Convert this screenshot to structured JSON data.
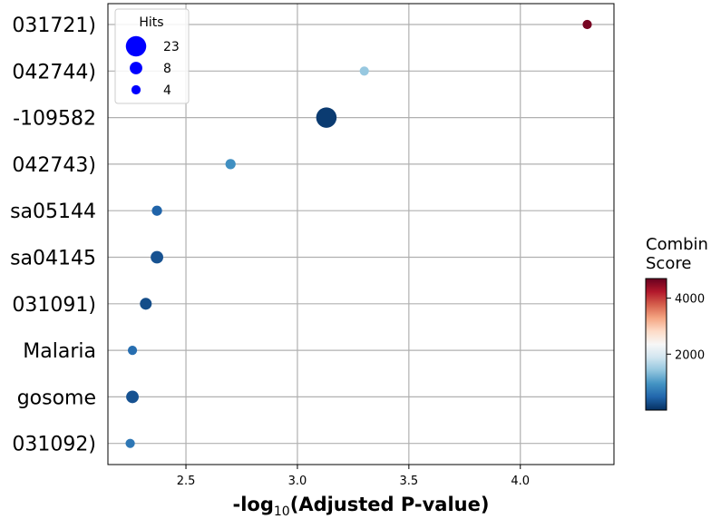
{
  "chart_data": {
    "type": "scatter",
    "xlabel": "-log10(Adjusted P-value)",
    "xlabel_main": "-log",
    "xlabel_sub": "10",
    "xlabel_rest": "(Adjusted P-value)",
    "xlim": [
      2.15,
      4.42
    ],
    "xticks": [
      "2.5",
      "3.0",
      "3.5",
      "4.0"
    ],
    "xtick_values": [
      2.5,
      3.0,
      3.5,
      4.0
    ],
    "grid": true,
    "categories": [
      "031721)",
      "042744)",
      "-109582",
      "042743)",
      "sa05144",
      "sa04145",
      "031091)",
      "Malaria",
      "gosome",
      "031092)"
    ],
    "points": [
      {
        "category": "031721)",
        "x": 4.3,
        "hits": 4,
        "score": 4600
      },
      {
        "category": "042744)",
        "x": 3.3,
        "hits": 4,
        "score": 1450
      },
      {
        "category": "-109582",
        "x": 3.13,
        "hits": 23,
        "score": 100
      },
      {
        "category": "042743)",
        "x": 2.7,
        "hits": 5,
        "score": 900
      },
      {
        "category": "sa05144",
        "x": 2.37,
        "hits": 5,
        "score": 450
      },
      {
        "category": "sa04145",
        "x": 2.37,
        "hits": 8,
        "score": 300
      },
      {
        "category": "031091)",
        "x": 2.32,
        "hits": 7,
        "score": 250
      },
      {
        "category": "Malaria",
        "x": 2.26,
        "hits": 4,
        "score": 550
      },
      {
        "category": "gosome",
        "x": 2.26,
        "hits": 8,
        "score": 300
      },
      {
        "category": "031092)",
        "x": 2.25,
        "hits": 4,
        "score": 650
      }
    ],
    "size_legend": {
      "title": "Hits",
      "placement": "top-left",
      "entries": [
        {
          "label": "23",
          "hits": 23
        },
        {
          "label": "8",
          "hits": 8
        },
        {
          "label": "4",
          "hits": 4
        }
      ],
      "color": "#0000ff"
    },
    "colorbar": {
      "title_line1": "Combin",
      "title_line2": "Score",
      "range": [
        0,
        4700
      ],
      "ticks": [
        {
          "label": "2000",
          "value": 2000
        },
        {
          "label": "4000",
          "value": 4000
        }
      ],
      "colormap": [
        "#053061",
        "#2166ac",
        "#4393c3",
        "#92c5de",
        "#d1e5f0",
        "#f7f7f7",
        "#fddbc7",
        "#f4a582",
        "#d6604d",
        "#b2182b",
        "#67001f"
      ]
    }
  }
}
